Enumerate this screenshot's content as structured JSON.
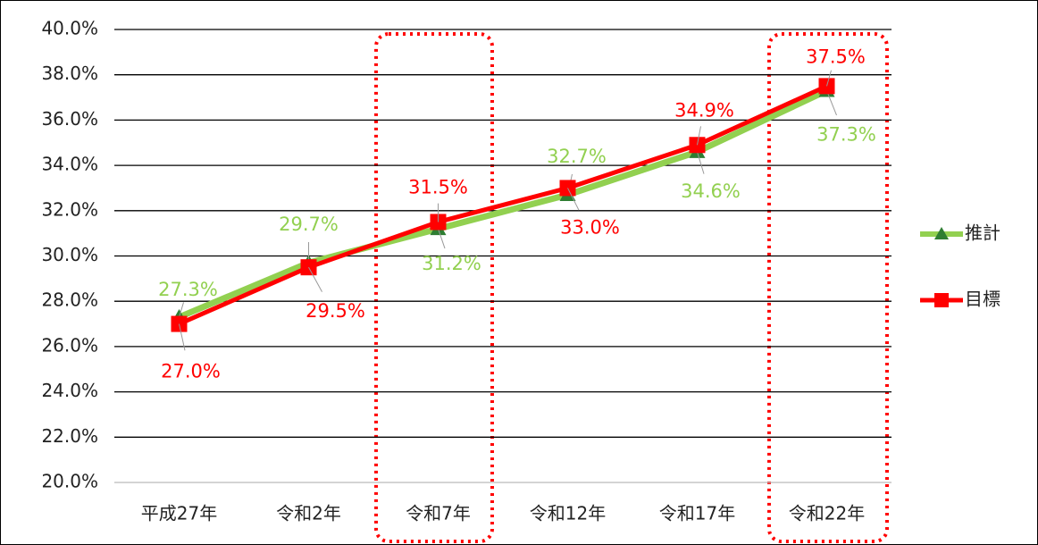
{
  "chart_data": {
    "type": "line",
    "categories": [
      "平成27年",
      "令和2年",
      "令和7年",
      "令和12年",
      "令和17年",
      "令和22年"
    ],
    "series": [
      {
        "name": "推計",
        "color": "#92d050",
        "marker": "triangle",
        "values": [
          27.3,
          29.7,
          31.2,
          32.7,
          34.6,
          37.3
        ],
        "value_labels": [
          "27.3%",
          "29.7%",
          "31.2%",
          "32.7%",
          "34.6%",
          "37.3%"
        ]
      },
      {
        "name": "目標",
        "color": "#ff0000",
        "marker": "square",
        "values": [
          27.0,
          29.5,
          31.5,
          33.0,
          34.9,
          37.5
        ],
        "value_labels": [
          "27.0%",
          "29.5%",
          "31.5%",
          "33.0%",
          "34.9%",
          "37.5%"
        ]
      }
    ],
    "ylim": [
      20,
      40
    ],
    "yticks": [
      {
        "value": 20,
        "label": "20.0%"
      },
      {
        "value": 22,
        "label": "22.0%"
      },
      {
        "value": 24,
        "label": "24.0%"
      },
      {
        "value": 26,
        "label": "26.0%"
      },
      {
        "value": 28,
        "label": "28.0%"
      },
      {
        "value": 30,
        "label": "30.0%"
      },
      {
        "value": 32,
        "label": "32.0%"
      },
      {
        "value": 34,
        "label": "34.0%"
      },
      {
        "value": 36,
        "label": "36.0%"
      },
      {
        "value": 38,
        "label": "38.0%"
      },
      {
        "value": 40,
        "label": "40.0%"
      }
    ],
    "grid": true,
    "legend": "right"
  }
}
